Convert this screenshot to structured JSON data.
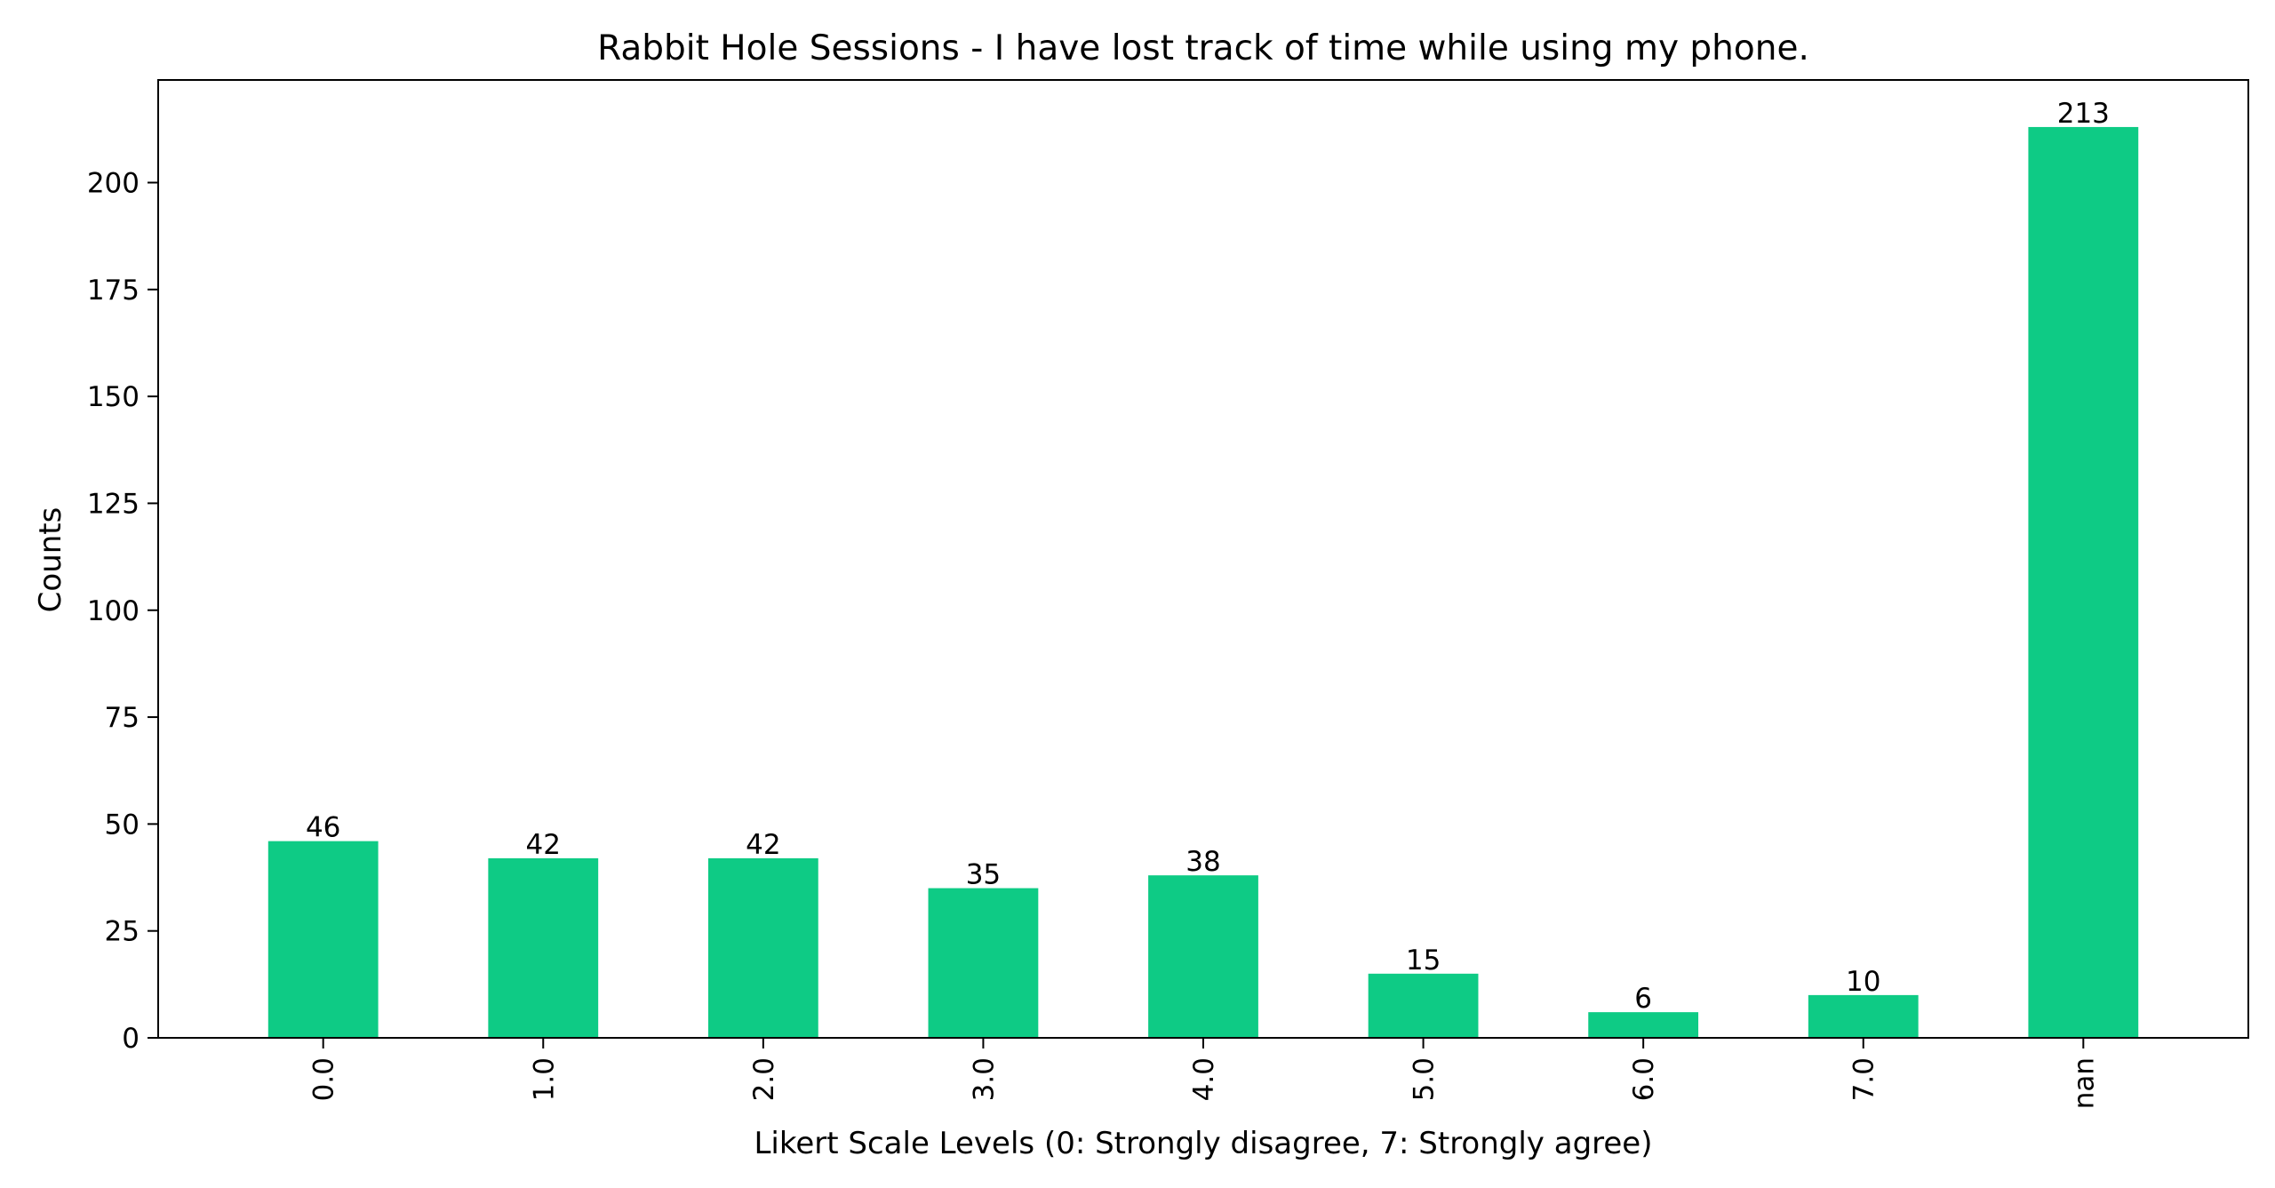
{
  "chart_data": {
    "type": "bar",
    "title": "Rabbit Hole Sessions - I have lost track of time while using my phone.",
    "xlabel": "Likert Scale Levels (0: Strongly disagree, 7: Strongly agree)",
    "ylabel": "Counts",
    "categories": [
      "0.0",
      "1.0",
      "2.0",
      "3.0",
      "4.0",
      "5.0",
      "6.0",
      "7.0",
      "nan"
    ],
    "values": [
      46,
      42,
      42,
      35,
      38,
      15,
      6,
      10,
      213
    ],
    "data_labels": [
      "46",
      "42",
      "42",
      "35",
      "38",
      "15",
      "6",
      "10",
      "213"
    ],
    "ylim": [
      0,
      224
    ],
    "yticks": [
      0,
      25,
      50,
      75,
      100,
      125,
      150,
      175,
      200
    ],
    "ytick_labels": [
      "0",
      "25",
      "50",
      "75",
      "100",
      "125",
      "150",
      "175",
      "200"
    ],
    "xtick_rotation": "vertical",
    "grid": false,
    "legend": "none",
    "bar_color": "#0ECB85"
  }
}
